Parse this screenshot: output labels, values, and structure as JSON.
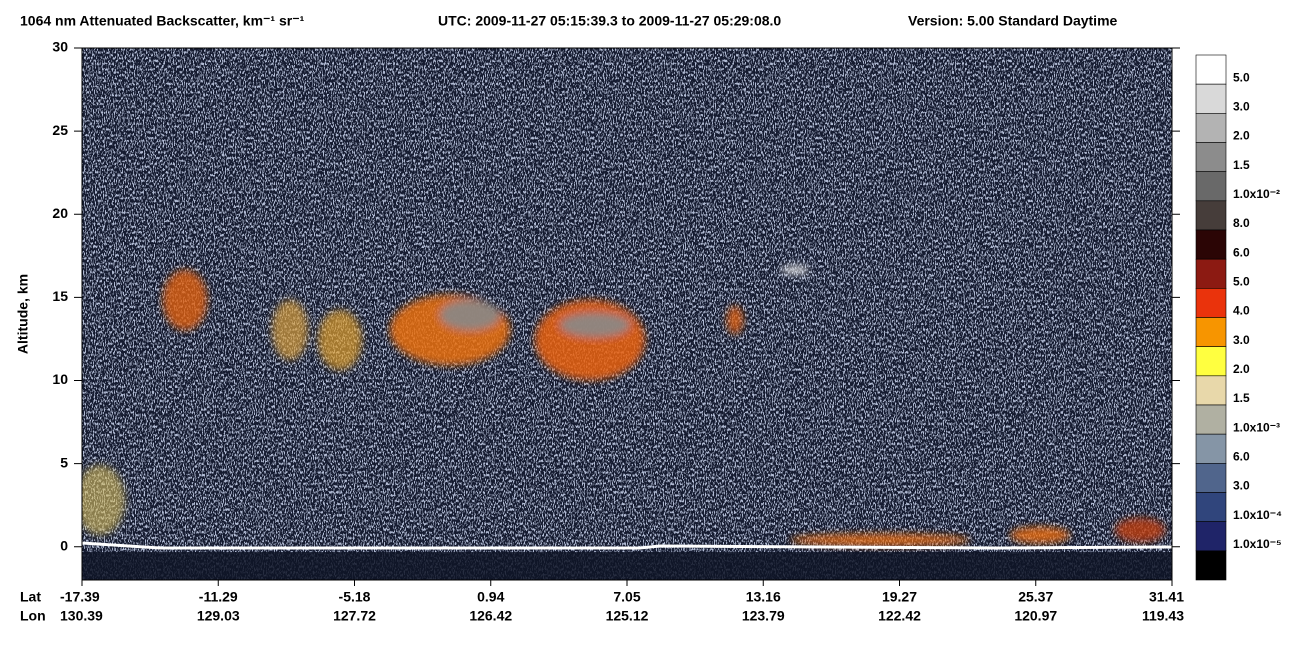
{
  "chart_data": {
    "type": "curtain",
    "title": "1064 nm Attenuated Backscatter, km⁻¹ sr⁻¹",
    "subtitle": "UTC:  2009-11-27 05:15:39.3  to  2009-11-27 05:29:08.0",
    "version": "Version: 5.00  Standard  Daytime",
    "y_label": "Altitude, km",
    "ylim": [
      -2,
      30
    ],
    "yticks": [
      0,
      5,
      10,
      15,
      20,
      25,
      30
    ],
    "row_labels": [
      "Lat",
      "Lon"
    ],
    "lat": [
      -17.39,
      -11.29,
      -5.18,
      0.94,
      7.05,
      13.16,
      19.27,
      25.37,
      31.41
    ],
    "lon": [
      130.39,
      129.03,
      127.72,
      126.42,
      125.12,
      123.79,
      122.42,
      120.97,
      119.43
    ],
    "colorbar": {
      "colors": [
        "#ffffff",
        "#d9d9d9",
        "#b3b3b3",
        "#8c8c8c",
        "#696969",
        "#463d3a",
        "#2b0505",
        "#8c1a12",
        "#ea330c",
        "#f79500",
        "#ffff40",
        "#e8d8aa",
        "#b0b0a2",
        "#8595a6",
        "#50658c",
        "#30457c",
        "#1f2468",
        "#000000"
      ],
      "labels": [
        "5.0",
        "3.0",
        "2.0",
        "1.5",
        "1.0x10⁻²",
        "8.0",
        "6.0",
        "5.0",
        "4.0",
        "3.0",
        "2.0",
        "1.5",
        "1.0x10⁻³",
        "6.0",
        "3.0",
        "1.0x10⁻⁴",
        "1.0x10⁻⁵"
      ]
    }
  }
}
